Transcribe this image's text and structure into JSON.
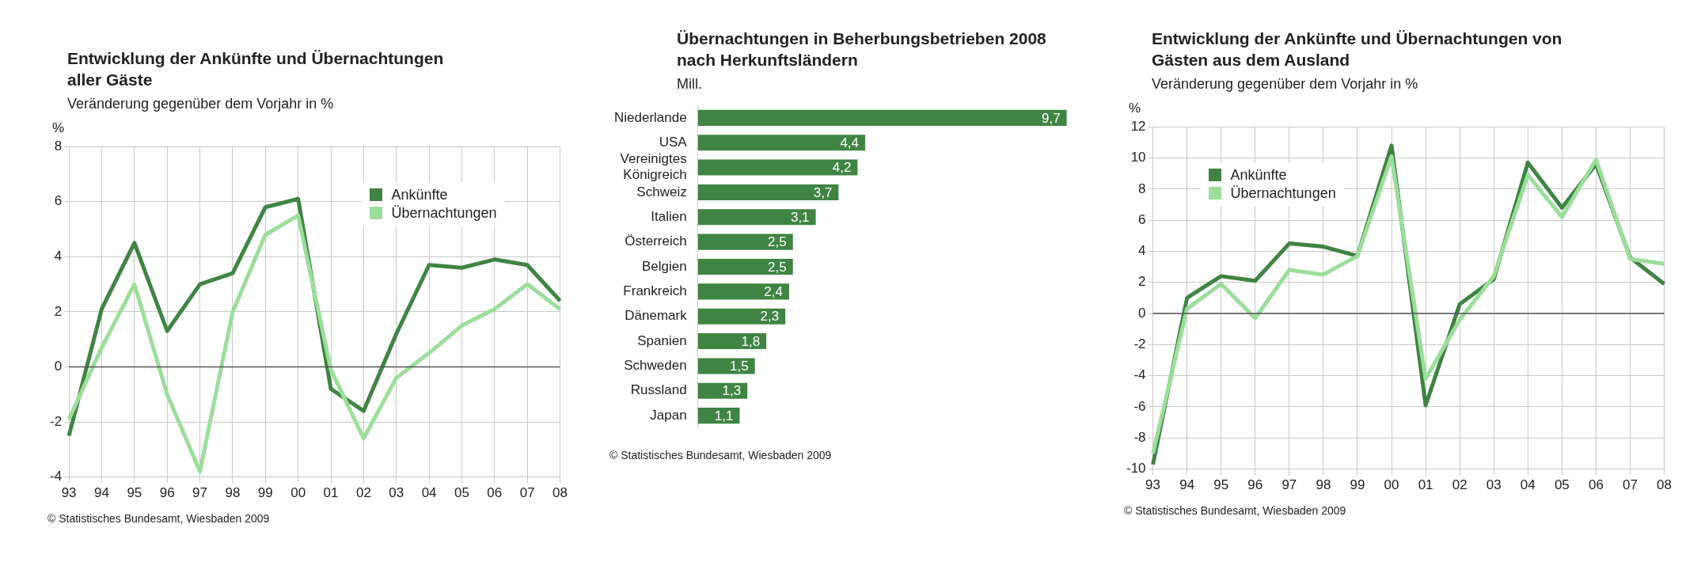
{
  "chart_data": [
    {
      "type": "line",
      "title": "Entwicklung der Ankünfte und Übernachtungen\naller Gäste",
      "subtitle": "Veränderung gegenüber dem Vorjahr in %",
      "ylabel": "%",
      "categories": [
        "93",
        "94",
        "95",
        "96",
        "97",
        "98",
        "99",
        "00",
        "01",
        "02",
        "03",
        "04",
        "05",
        "06",
        "07",
        "08"
      ],
      "series": [
        {
          "name": "Ankünfte",
          "color": "#3f8443",
          "values": [
            -2.5,
            2.1,
            4.5,
            1.3,
            3.0,
            3.4,
            5.8,
            6.1,
            -0.8,
            -1.6,
            1.2,
            3.7,
            3.6,
            3.9,
            3.7,
            2.4
          ]
        },
        {
          "name": "Übernachtungen",
          "color": "#9ade9a",
          "values": [
            -1.9,
            0.7,
            3.0,
            -1.0,
            -3.8,
            2.0,
            4.8,
            5.5,
            -0.1,
            -2.6,
            -0.4,
            0.5,
            1.5,
            2.1,
            3.0,
            2.1
          ]
        }
      ],
      "ylim": [
        -4,
        8
      ],
      "yticks": [
        -4,
        -2,
        0,
        2,
        4,
        6,
        8
      ],
      "grid": true,
      "legend": "top right",
      "ref_lines": [
        {
          "axis": "y",
          "value": 0,
          "color": "#555555"
        }
      ],
      "annotations": [
        "© Statistisches Bundesamt, Wiesbaden 2009"
      ]
    },
    {
      "type": "bar",
      "orientation": "horizontal",
      "title": "Übernachtungen in Beherbungsbetrieben 2008\nnach Herkunftsländern",
      "subtitle": "Mill.",
      "categories": [
        "Niederlande",
        "USA",
        "Vereinigtes Königreich",
        "Schweiz",
        "Italien",
        "Österreich",
        "Belgien",
        "Frankreich",
        "Dänemark",
        "Spanien",
        "Schweden",
        "Russland",
        "Japan"
      ],
      "values": [
        9.7,
        4.4,
        4.2,
        3.7,
        3.1,
        2.5,
        2.5,
        2.4,
        2.3,
        1.8,
        1.5,
        1.3,
        1.1
      ],
      "value_labels": [
        "9,7",
        "4,4",
        "4,2",
        "3,7",
        "3,1",
        "2,5",
        "2,5",
        "2,4",
        "2,3",
        "1,8",
        "1,5",
        "1,3",
        "1,1"
      ],
      "color": "#3f8443",
      "annotations": [
        "© Statistisches Bundesamt, Wiesbaden 2009"
      ]
    },
    {
      "type": "line",
      "title": "Entwicklung der Ankünfte und Übernachtungen von\nGästen aus dem Ausland",
      "subtitle": "Veränderung gegenüber dem Vorjahr in %",
      "ylabel": "%",
      "categories": [
        "93",
        "94",
        "95",
        "96",
        "97",
        "98",
        "99",
        "00",
        "01",
        "02",
        "03",
        "04",
        "05",
        "06",
        "07",
        "08"
      ],
      "series": [
        {
          "name": "Ankünfte",
          "color": "#3f8443",
          "values": [
            -9.7,
            1.0,
            2.4,
            2.1,
            4.5,
            4.3,
            3.7,
            10.8,
            -5.9,
            0.6,
            2.2,
            9.7,
            6.8,
            9.6,
            3.6,
            1.9
          ]
        },
        {
          "name": "Übernachtungen",
          "color": "#9ade9a",
          "values": [
            -9.0,
            0.3,
            1.9,
            -0.3,
            2.8,
            2.5,
            3.7,
            10.1,
            -4.2,
            -0.4,
            2.4,
            8.9,
            6.2,
            9.9,
            3.5,
            3.2
          ]
        }
      ],
      "ylim": [
        -10,
        12
      ],
      "yticks": [
        -10,
        -8,
        -6,
        -4,
        -2,
        0,
        2,
        4,
        6,
        8,
        10,
        12
      ],
      "grid": true,
      "legend": "top left",
      "ref_lines": [
        {
          "axis": "y",
          "value": 0,
          "color": "#555555"
        }
      ],
      "annotations": [
        "© Statistisches Bundesamt, Wiesbaden 2009"
      ]
    }
  ]
}
